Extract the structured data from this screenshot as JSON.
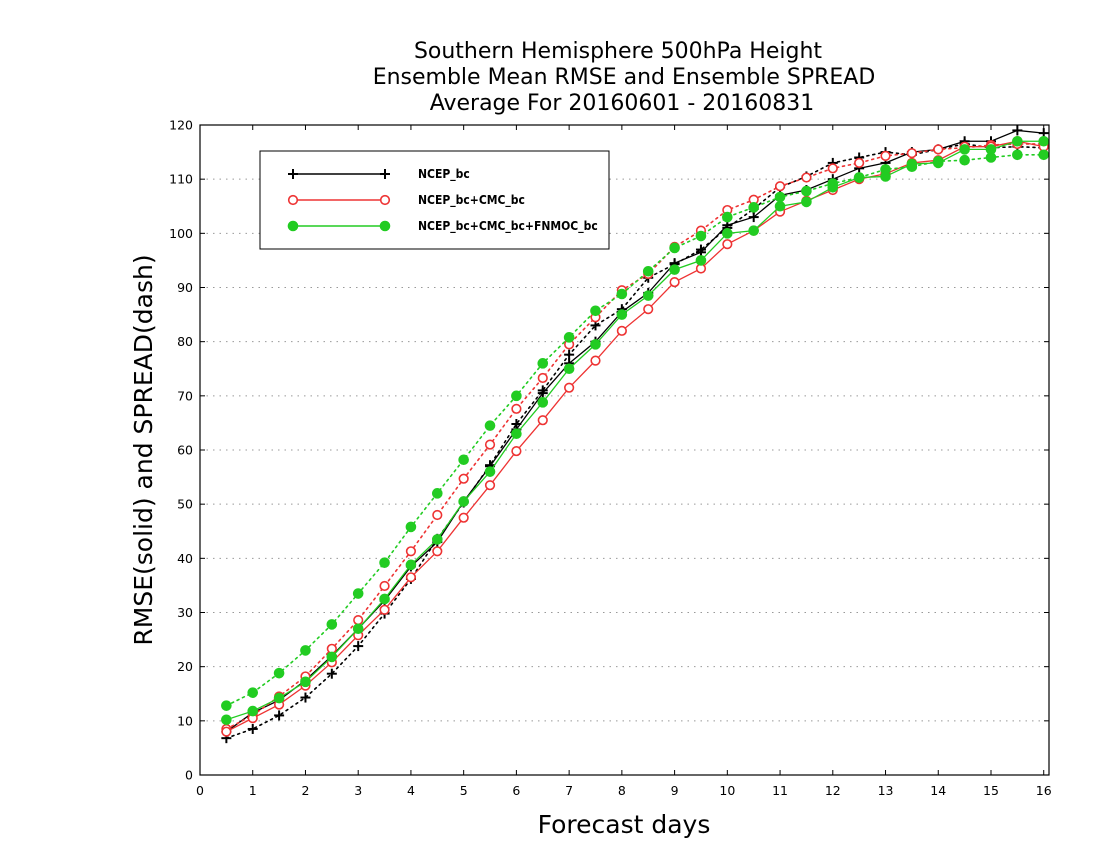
{
  "chart_data": {
    "type": "line",
    "title_lines": [
      "Southern Hemisphere 500hPa Height",
      "Ensemble Mean RMSE and Ensemble SPREAD",
      "Average For 20160601 - 20160831"
    ],
    "xlabel": "Forecast days",
    "ylabel": "RMSE(solid) and SPREAD(dash)",
    "xlim": [
      0,
      16.1
    ],
    "ylim": [
      0,
      120
    ],
    "xticks": [
      "0",
      "1",
      "2",
      "3",
      "4",
      "5",
      "6",
      "7",
      "8",
      "9",
      "10",
      "11",
      "12",
      "13",
      "14",
      "15",
      "16"
    ],
    "yticks": [
      "0",
      "10",
      "20",
      "30",
      "40",
      "50",
      "60",
      "70",
      "80",
      "90",
      "100",
      "110",
      "120"
    ],
    "grid": "horizontal dotted",
    "legend_position": "top-left",
    "x": [
      0.5,
      1,
      1.5,
      2,
      2.5,
      3,
      3.5,
      4,
      4.5,
      5,
      5.5,
      6,
      6.5,
      7,
      7.5,
      8,
      8.5,
      9,
      9.5,
      10,
      10.5,
      11,
      11.5,
      12,
      12.5,
      13,
      13.5,
      14,
      14.5,
      15,
      15.5,
      16
    ],
    "series": [
      {
        "name": "NCEP_bc",
        "color": "#000000",
        "marker": "plus",
        "rmse": [
          8.0,
          11.5,
          13.8,
          17.5,
          22.0,
          27.0,
          32.2,
          38.5,
          43.0,
          50.5,
          57.0,
          63.8,
          70.5,
          76.0,
          80.0,
          85.5,
          89.0,
          94.5,
          96.5,
          101.5,
          103.0,
          107.0,
          108.0,
          110.0,
          112.0,
          113.0,
          115.0,
          115.5,
          117.0,
          117.0,
          119.0,
          118.5
        ],
        "spread": [
          6.8,
          8.5,
          11.0,
          14.3,
          18.7,
          23.8,
          29.8,
          36.2,
          43.6,
          50.3,
          57.2,
          64.8,
          71.0,
          77.6,
          83.0,
          86.0,
          91.8,
          94.3,
          97.0,
          101.0,
          104.5,
          108.5,
          110.5,
          113.0,
          114.0,
          115.0,
          114.5,
          115.5,
          116.5,
          115.8,
          116.0,
          115.8
        ]
      },
      {
        "name": "NCEP_bc+CMC_bc",
        "color": "#ee3333",
        "marker": "open-circle",
        "rmse": [
          8.0,
          10.5,
          13.0,
          16.5,
          20.8,
          25.8,
          30.5,
          36.5,
          41.3,
          47.5,
          53.5,
          59.8,
          65.5,
          71.5,
          76.5,
          82.0,
          86.0,
          91.0,
          93.5,
          98.0,
          100.5,
          104.0,
          106.0,
          108.0,
          110.0,
          111.0,
          113.0,
          113.5,
          116.0,
          116.0,
          117.0,
          116.0
        ],
        "spread": [
          8.5,
          11.0,
          14.5,
          18.2,
          23.3,
          28.6,
          34.9,
          41.3,
          48.0,
          54.7,
          61.0,
          67.6,
          73.3,
          79.5,
          84.5,
          89.5,
          92.5,
          97.5,
          100.5,
          104.3,
          106.2,
          108.7,
          110.3,
          112.0,
          113.0,
          114.3,
          114.8,
          115.5,
          115.8,
          116.3,
          116.5,
          116.5
        ]
      },
      {
        "name": "NCEP_bc+CMC_bc+FNMOC_bc",
        "color": "#22cc22",
        "marker": "filled-circle",
        "rmse": [
          10.2,
          11.8,
          14.2,
          17.2,
          21.8,
          27.0,
          32.5,
          38.8,
          43.5,
          50.5,
          56.0,
          63.0,
          68.8,
          75.0,
          79.5,
          85.0,
          88.5,
          93.3,
          95.0,
          100.0,
          100.5,
          105.0,
          105.8,
          108.5,
          110.3,
          110.5,
          112.8,
          113.0,
          115.5,
          115.5,
          117.0,
          117.0
        ],
        "spread": [
          12.8,
          15.2,
          18.8,
          23.0,
          27.8,
          33.5,
          39.2,
          45.8,
          52.0,
          58.2,
          64.5,
          70.0,
          76.0,
          80.8,
          85.7,
          88.8,
          93.0,
          97.3,
          99.5,
          103.0,
          104.8,
          106.7,
          107.8,
          109.2,
          110.3,
          111.8,
          112.3,
          113.3,
          113.5,
          114.0,
          114.5,
          114.5
        ]
      }
    ]
  }
}
